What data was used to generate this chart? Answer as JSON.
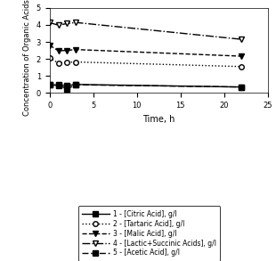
{
  "time": [
    0,
    1,
    2,
    3,
    22
  ],
  "citric_acid": [
    0.47,
    0.47,
    0.43,
    0.5,
    0.35
  ],
  "tartaric_acid": [
    2.08,
    1.75,
    1.8,
    1.82,
    1.55
  ],
  "malic_acid": [
    2.8,
    2.48,
    2.5,
    2.55,
    2.16
  ],
  "lactic_succinic": [
    4.13,
    3.98,
    4.08,
    4.14,
    3.15
  ],
  "acetic_acid": [
    0.47,
    0.45,
    0.25,
    0.48,
    0.35
  ],
  "ylabel": "Concentration of Organic Acids, g/l",
  "xlabel": "Time, h",
  "ylim": [
    0,
    5
  ],
  "xlim": [
    0,
    25
  ],
  "yticks": [
    0,
    1,
    2,
    3,
    4,
    5
  ],
  "xticks": [
    0,
    5,
    10,
    15,
    20,
    25
  ],
  "legend_labels": [
    "1 - [Citric Acid], g/l",
    "2 - [Tartaric Acid], g/l",
    "3 - [Malic Acid], g/l",
    "4 - [Lactic+Succinic Acids], g/l",
    "5 - [Acetic Acid], g/l"
  ]
}
